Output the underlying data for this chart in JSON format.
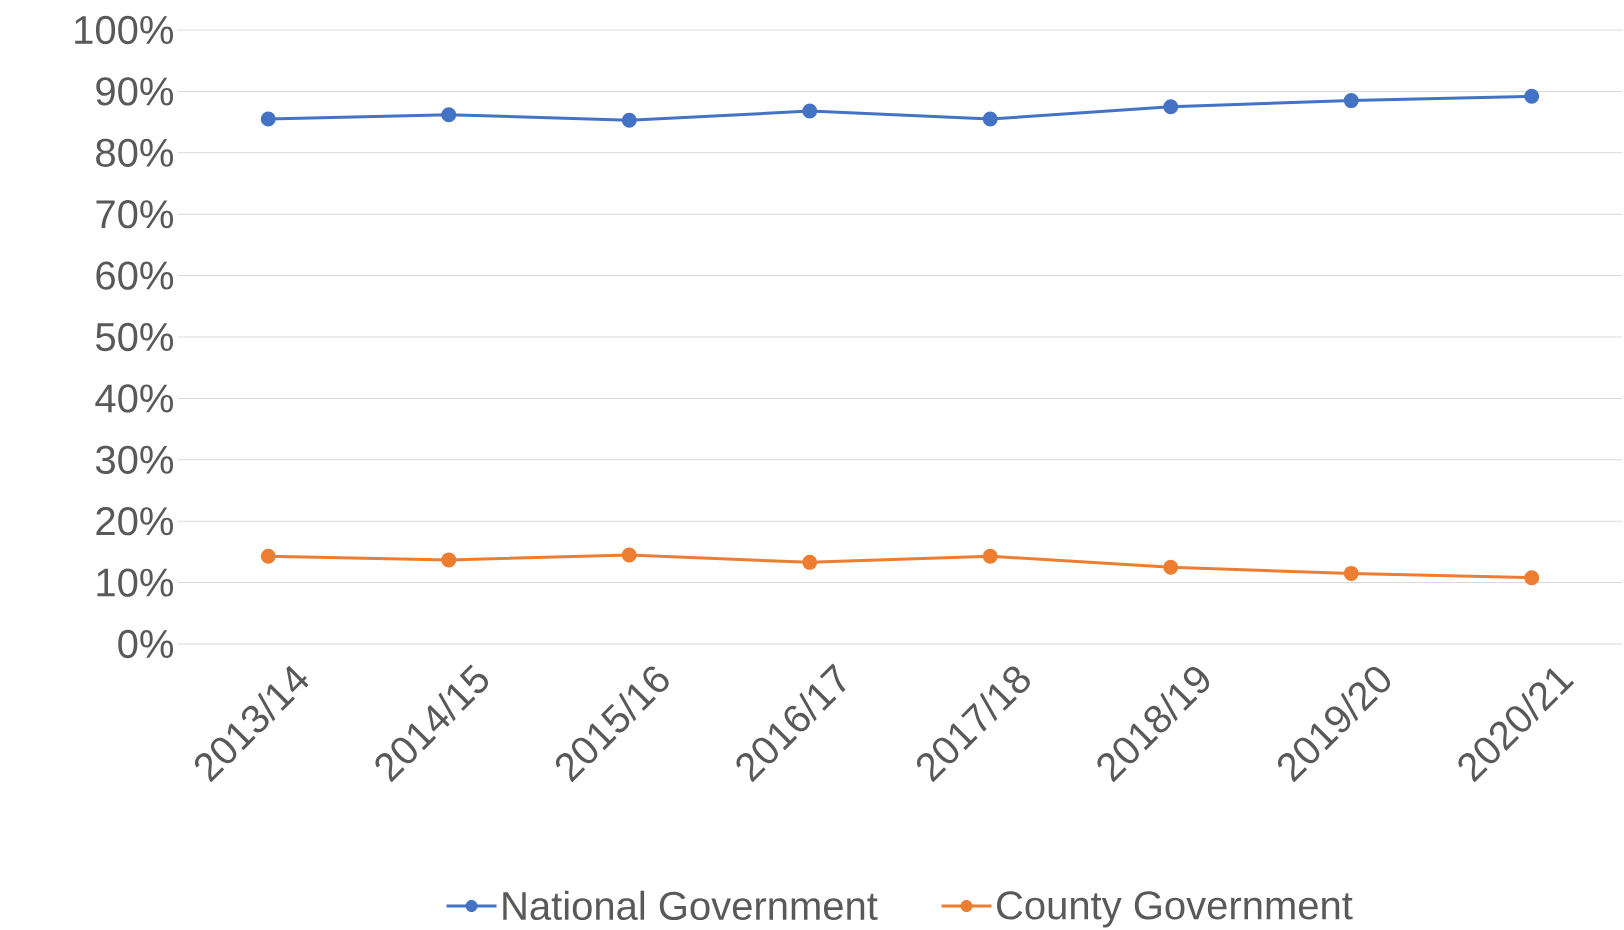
{
  "chart_data": {
    "type": "line",
    "categories": [
      "2013/14",
      "2014/15",
      "2015/16",
      "2016/17",
      "2017/18",
      "2018/19",
      "2019/20",
      "2020/21"
    ],
    "series": [
      {
        "name": "National Government",
        "color": "#4472c4",
        "values": [
          85.5,
          86.2,
          85.3,
          86.8,
          85.5,
          87.5,
          88.5,
          89.2
        ]
      },
      {
        "name": "County Government",
        "color": "#ed7d31",
        "values": [
          14.3,
          13.7,
          14.5,
          13.3,
          14.3,
          12.5,
          11.5,
          10.8
        ]
      }
    ],
    "ylim": [
      0,
      100
    ],
    "yticks": [
      {
        "value": 0,
        "label": "0%"
      },
      {
        "value": 10,
        "label": "10%"
      },
      {
        "value": 20,
        "label": "20%"
      },
      {
        "value": 30,
        "label": "30%"
      },
      {
        "value": 40,
        "label": "40%"
      },
      {
        "value": 50,
        "label": "50%"
      },
      {
        "value": 60,
        "label": "60%"
      },
      {
        "value": 70,
        "label": "70%"
      },
      {
        "value": 80,
        "label": "80%"
      },
      {
        "value": 90,
        "label": "90%"
      },
      {
        "value": 100,
        "label": "100%"
      }
    ],
    "grid": "y",
    "legend": "bottom",
    "marker": "circle",
    "line_style": "solid"
  }
}
